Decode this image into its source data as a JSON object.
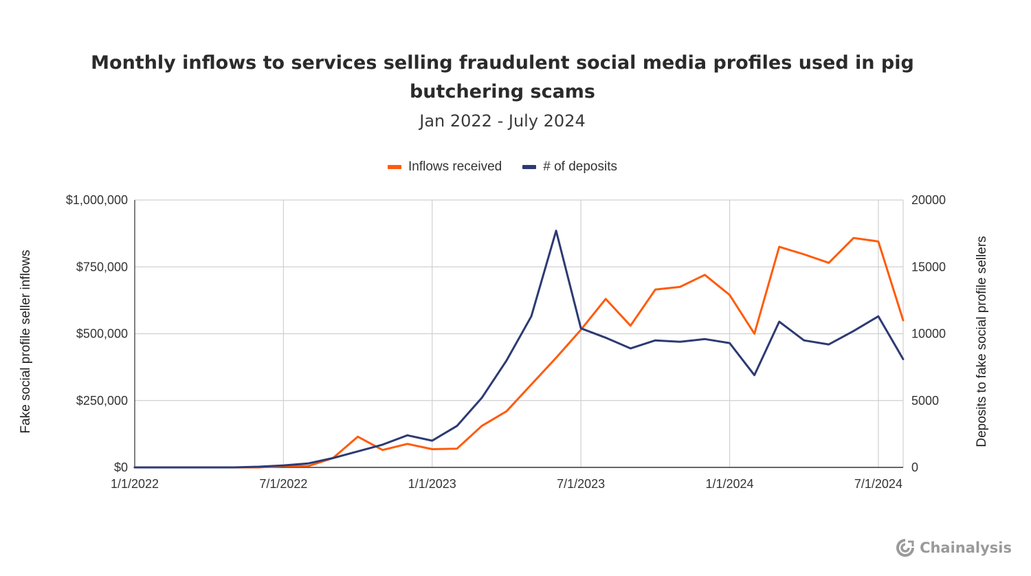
{
  "chart_data": {
    "type": "line",
    "title_line1": "Monthly inflows to services selling fraudulent social media profiles used in pig",
    "title_line2": "butchering scams",
    "subtitle": "Jan 2022 - July 2024",
    "x": [
      "2022-01",
      "2022-02",
      "2022-03",
      "2022-04",
      "2022-05",
      "2022-06",
      "2022-07",
      "2022-08",
      "2022-09",
      "2022-10",
      "2022-11",
      "2022-12",
      "2023-01",
      "2023-02",
      "2023-03",
      "2023-04",
      "2023-05",
      "2023-06",
      "2023-07",
      "2023-08",
      "2023-09",
      "2023-10",
      "2023-11",
      "2023-12",
      "2024-01",
      "2024-02",
      "2024-03",
      "2024-04",
      "2024-05",
      "2024-06",
      "2024-07",
      "2024-08"
    ],
    "x_tick_labels": [
      "1/1/2022",
      "7/1/2022",
      "1/1/2023",
      "7/1/2023",
      "1/1/2024",
      "7/1/2024"
    ],
    "x_tick_indices": [
      0,
      6,
      12,
      18,
      24,
      30
    ],
    "series": [
      {
        "name": "Inflows received",
        "axis": "left",
        "color": "#ff5b0a",
        "values": [
          0,
          0,
          0,
          0,
          0,
          0,
          5000,
          5000,
          35000,
          115000,
          65000,
          88000,
          68000,
          70000,
          155000,
          210000,
          310000,
          410000,
          515000,
          630000,
          530000,
          665000,
          675000,
          720000,
          645000,
          500000,
          825000,
          797000,
          765000,
          858000,
          845000,
          550000
        ]
      },
      {
        "name": "# of deposits",
        "axis": "right",
        "color": "#2d3a73",
        "values": [
          0,
          0,
          0,
          0,
          0,
          50,
          150,
          300,
          700,
          1200,
          1700,
          2400,
          2000,
          3100,
          5200,
          8000,
          11300,
          17700,
          10400,
          9700,
          8900,
          9500,
          9400,
          9600,
          9300,
          6900,
          10900,
          9500,
          9200,
          10200,
          11300,
          8100
        ]
      }
    ],
    "ylabel_left": "Fake social profile seller inflows",
    "ylabel_right": "Deposits to fake social profile sellers",
    "ylim_left": [
      0,
      1000000
    ],
    "ylim_right": [
      0,
      20000
    ],
    "y_ticks_left": [
      "$0",
      "$250,000",
      "$500,000",
      "$750,000",
      "$1,000,000"
    ],
    "y_ticks_right": [
      "0",
      "5000",
      "10000",
      "15000",
      "20000"
    ],
    "grid": true,
    "legend": "top-center"
  },
  "branding": {
    "logo_text": "Chainalysis",
    "logo_color": "#9a9a9a"
  }
}
